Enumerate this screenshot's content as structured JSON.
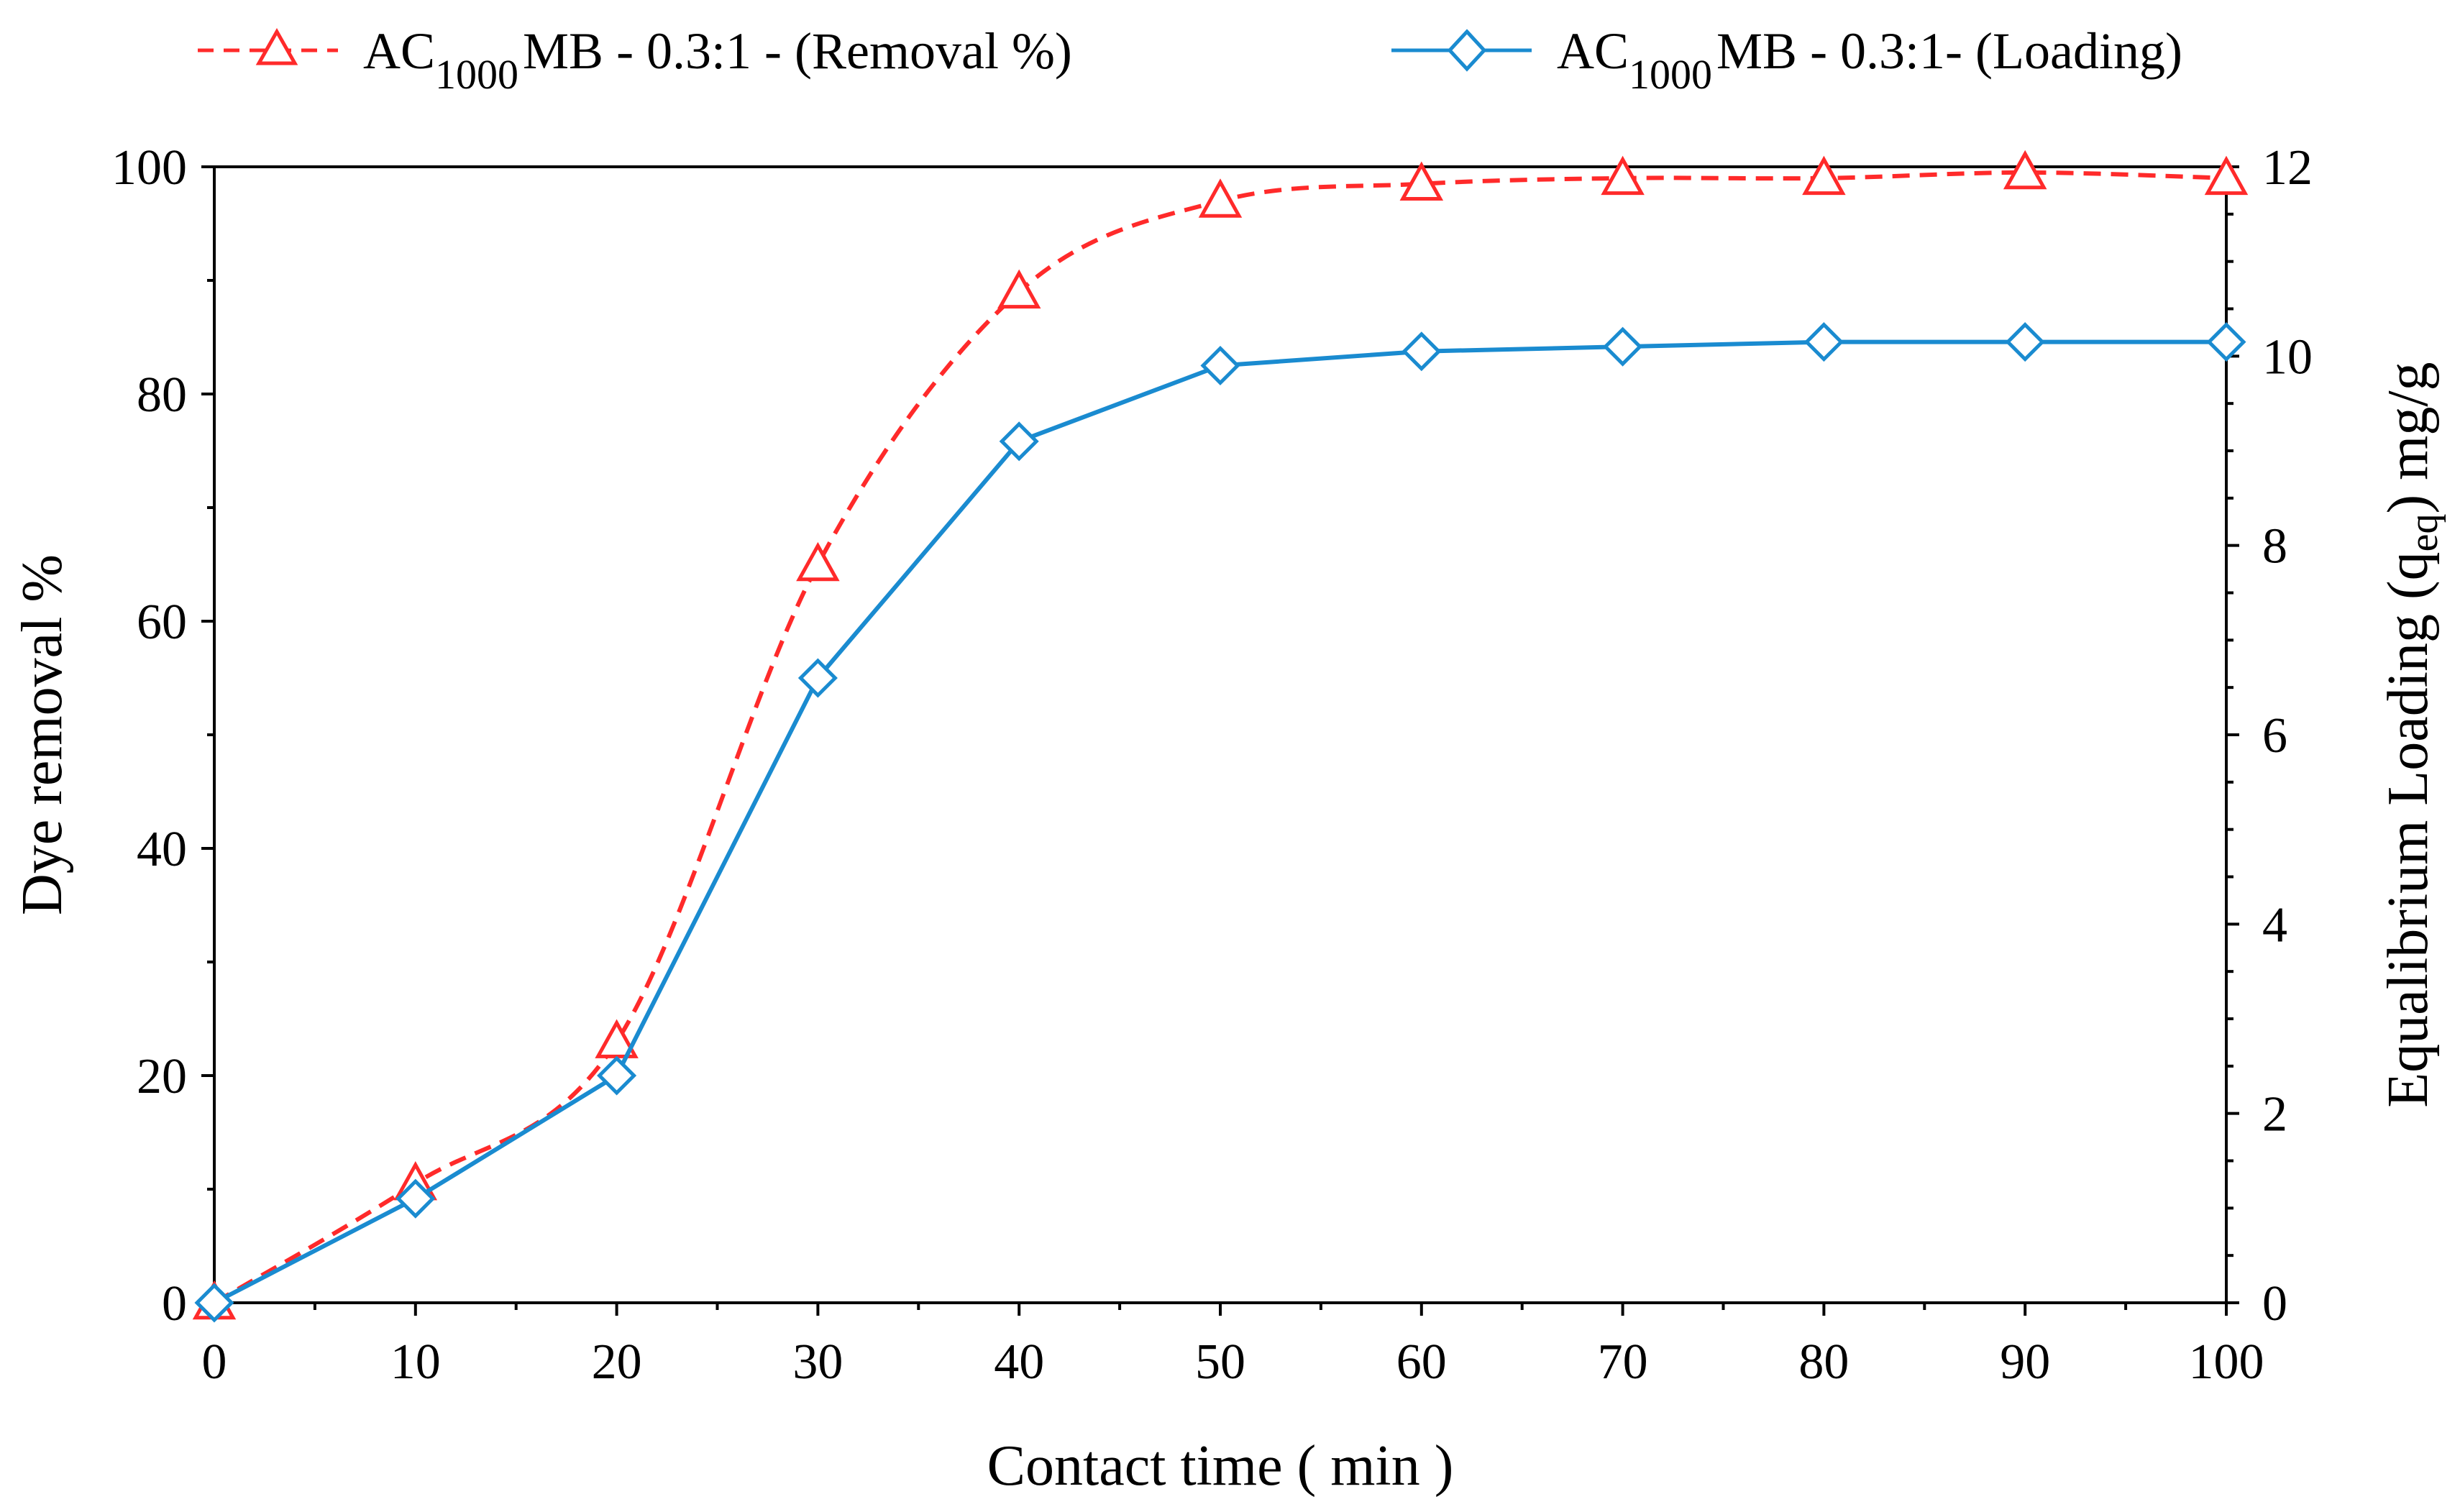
{
  "chart_data": {
    "type": "line",
    "x": [
      0,
      10,
      20,
      30,
      40,
      50,
      60,
      70,
      80,
      90,
      100
    ],
    "xlabel": "Contact time ( min )",
    "xlim": [
      0,
      100
    ],
    "xticks": [
      "0",
      "10",
      "20",
      "30",
      "40",
      "50",
      "60",
      "70",
      "80",
      "90",
      "100"
    ],
    "ylabel_left": "Dye removal %",
    "ylim_left": [
      0,
      100
    ],
    "yticks_left": [
      "0",
      "20",
      "40",
      "60",
      "80",
      "100"
    ],
    "ylabel_right": {
      "pre": "Equalibrium Loading (q",
      "sub": "eq",
      "post": ") mg/g"
    },
    "ylim_right": [
      0,
      12
    ],
    "yticks_right": [
      "0",
      "2",
      "4",
      "6",
      "8",
      "10",
      "12"
    ],
    "grid": false,
    "legend_position": "top",
    "series": [
      {
        "name": "AC1000MB - 0.3:1 - (Removal %)",
        "legend_parts": {
          "pre": "AC",
          "sub": "1000",
          "post": "MB - 0.3:1 - (Removal %)"
        },
        "axis": "left",
        "marker": "triangle",
        "line_style": "dashed",
        "color": "#ff2a2a",
        "values": [
          0,
          10.5,
          23,
          65,
          89,
          97,
          98.5,
          99,
          99,
          99.5,
          99
        ]
      },
      {
        "name": "AC1000MB - 0.3:1- (Loading)",
        "legend_parts": {
          "pre": "AC",
          "sub": "1000",
          "post": "MB - 0.3:1- (Loading)"
        },
        "axis": "right",
        "marker": "diamond",
        "line_style": "solid",
        "color": "#1a8bd0",
        "values": [
          0,
          1.1,
          2.4,
          6.6,
          9.1,
          9.9,
          10.05,
          10.1,
          10.15,
          10.15,
          10.15
        ]
      }
    ]
  }
}
